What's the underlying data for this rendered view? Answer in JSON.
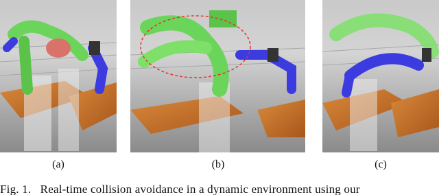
{
  "figure": {
    "panels": [
      {
        "label": "(a)"
      },
      {
        "label": "(b)"
      },
      {
        "label": "(c)"
      }
    ],
    "caption": "Fig. 1.   Real-time collision avoidance in a dynamic environment using our"
  }
}
